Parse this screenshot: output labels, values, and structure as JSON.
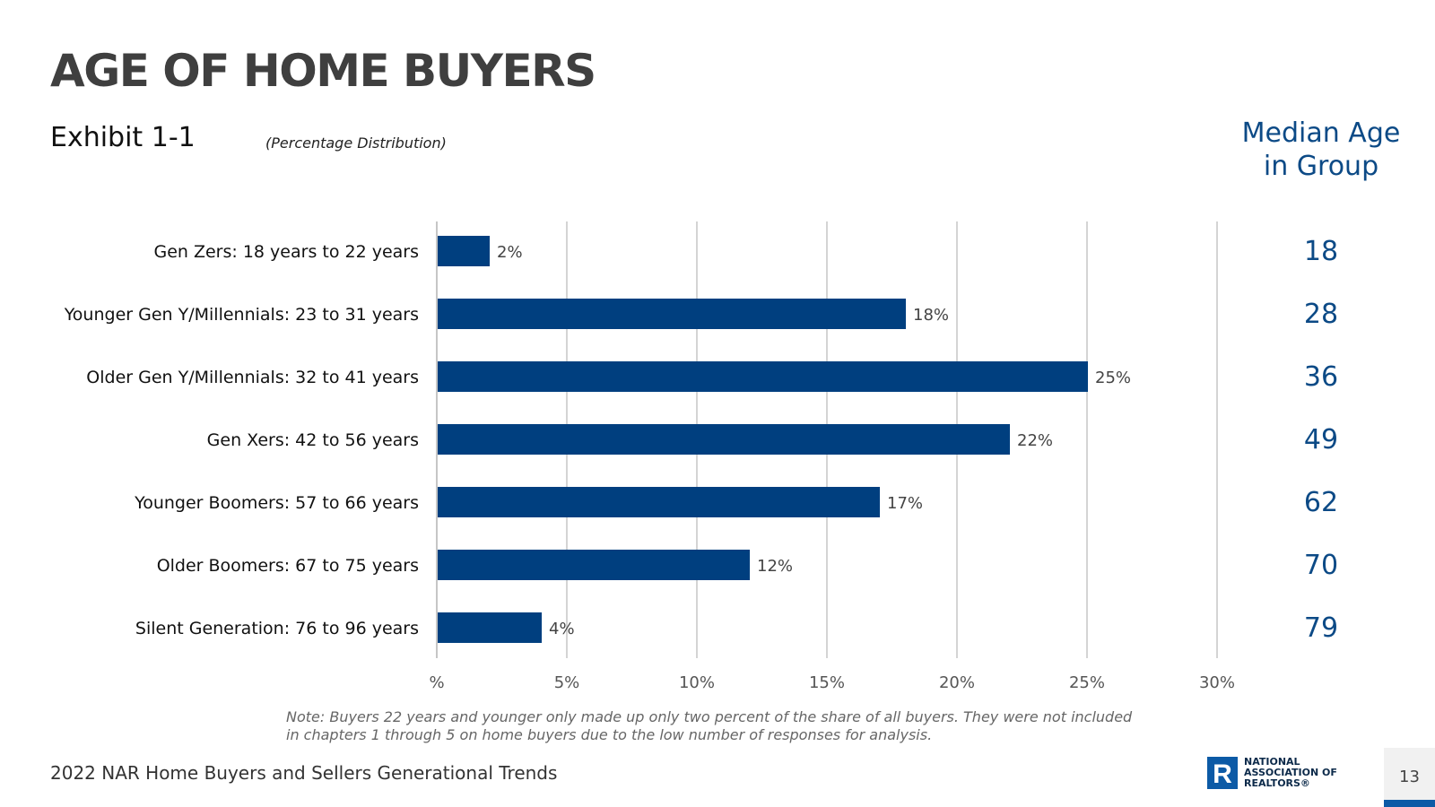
{
  "page": {
    "title": "AGE OF HOME BUYERS",
    "exhibit": "Exhibit 1-1",
    "subtitle": "(Percentage Distribution)",
    "median_header_line1": "Median Age",
    "median_header_line2": "in Group",
    "note_line1": "Note: Buyers 22 years and younger only made up only two percent of the share of all buyers. They were not included",
    "note_line2": "in chapters 1 through 5 on home buyers due to the low number of responses for analysis.",
    "footer": "2022 NAR Home Buyers and Sellers Generational Trends",
    "logo_line1": "NATIONAL",
    "logo_line2": "ASSOCIATION OF",
    "logo_line3": "REALTORS®",
    "logo_mark": "R",
    "page_number": "13"
  },
  "colors": {
    "bar": "#003f7f",
    "median": "#0c4a86",
    "grid": "#d4d4d4",
    "accent": "#0c5aa6"
  },
  "chart_data": {
    "type": "bar",
    "orientation": "horizontal",
    "title": "AGE OF HOME BUYERS",
    "xlabel": "",
    "ylabel": "",
    "xlim": [
      0,
      30
    ],
    "grid": true,
    "ticks": [
      0,
      5,
      10,
      15,
      20,
      25,
      30
    ],
    "tick_labels": [
      "%",
      "5%",
      "10%",
      "15%",
      "20%",
      "25%",
      "30%"
    ],
    "categories": [
      "Gen Zers: 18 years to 22 years",
      "Younger Gen Y/Millennials: 23 to 31 years",
      "Older Gen Y/Millennials: 32 to 41 years",
      "Gen Xers: 42 to 56 years",
      "Younger Boomers: 57 to 66 years",
      "Older Boomers: 67 to 75 years",
      "Silent Generation: 76 to 96 years"
    ],
    "values": [
      2,
      18,
      25,
      22,
      17,
      12,
      4
    ],
    "value_labels": [
      "2%",
      "18%",
      "25%",
      "22%",
      "17%",
      "12%",
      "4%"
    ],
    "median_age": [
      "18",
      "28",
      "36",
      "49",
      "62",
      "70",
      "79"
    ]
  }
}
